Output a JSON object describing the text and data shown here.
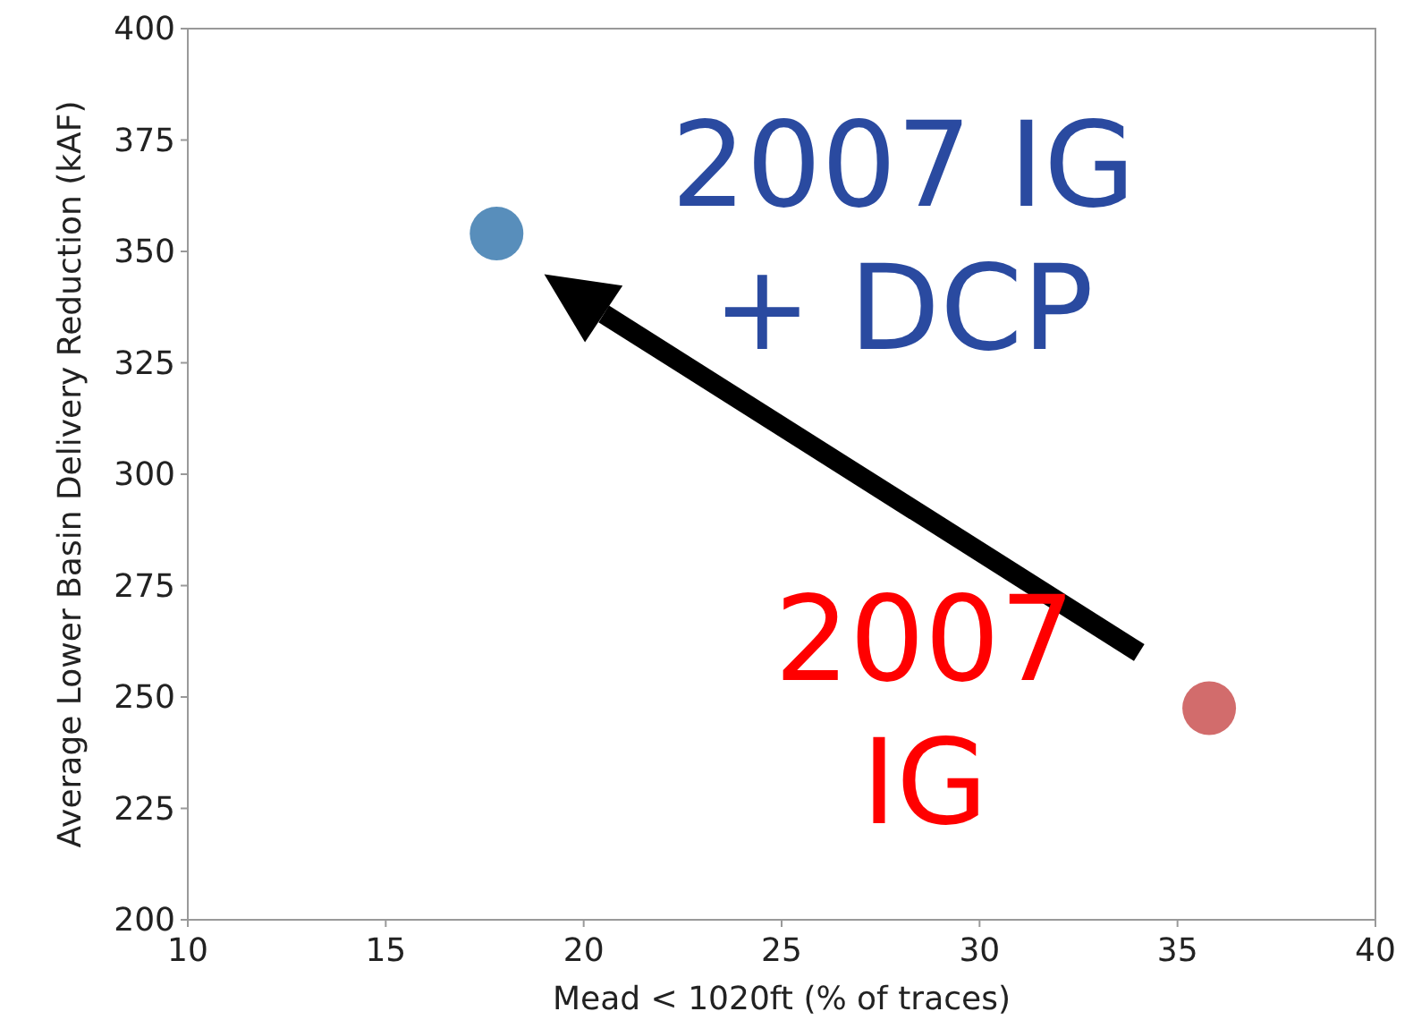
{
  "chart_data": {
    "type": "scatter",
    "xlabel": "Mead < 1020ft (% of traces)",
    "ylabel": "Average Lower Basin Delivery Reduction (kAF)",
    "xlim": [
      10,
      40
    ],
    "xticks": [
      10,
      15,
      20,
      25,
      30,
      35,
      40
    ],
    "ylim": [
      200,
      400
    ],
    "yticks": [
      200,
      225,
      250,
      275,
      300,
      325,
      350,
      375,
      400
    ],
    "x": [
      17.8,
      35.8
    ],
    "values": [
      354,
      247.5
    ],
    "colors": [
      "#4682b4",
      "#cd5c5c"
    ],
    "marker": "circle",
    "grid": false,
    "annotations": [
      "2007 IG\n+ DCP",
      "2007\nIG"
    ]
  }
}
